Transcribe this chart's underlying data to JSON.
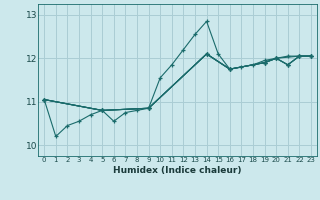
{
  "xlabel": "Humidex (Indice chaleur)",
  "bg_color": "#cce8ec",
  "grid_color": "#aacdd4",
  "line_color": "#1a6b6b",
  "xlim": [
    -0.5,
    23.5
  ],
  "ylim": [
    9.75,
    13.25
  ],
  "xticks": [
    0,
    1,
    2,
    3,
    4,
    5,
    6,
    7,
    8,
    9,
    10,
    11,
    12,
    13,
    14,
    15,
    16,
    17,
    18,
    19,
    20,
    21,
    22,
    23
  ],
  "yticks": [
    10,
    11,
    12,
    13
  ],
  "lines": [
    {
      "x": [
        0,
        1,
        2,
        3,
        4,
        5,
        6,
        7,
        8,
        9,
        10,
        11,
        12,
        13,
        14,
        15,
        16,
        17,
        18,
        19,
        20,
        21,
        22,
        23
      ],
      "y": [
        11.05,
        10.2,
        10.45,
        10.55,
        10.7,
        10.8,
        10.55,
        10.75,
        10.8,
        10.85,
        11.55,
        11.85,
        12.2,
        12.55,
        12.85,
        12.1,
        11.75,
        11.8,
        11.85,
        11.95,
        12.0,
        12.05,
        12.05,
        12.05
      ]
    },
    {
      "x": [
        0,
        5,
        9,
        14,
        16,
        19,
        20,
        21,
        22,
        23
      ],
      "y": [
        11.05,
        10.8,
        10.85,
        12.1,
        11.75,
        11.9,
        12.0,
        11.85,
        12.05,
        12.05
      ]
    },
    {
      "x": [
        0,
        5,
        9,
        14,
        16,
        19,
        20,
        22,
        23
      ],
      "y": [
        11.05,
        10.8,
        10.85,
        12.1,
        11.75,
        11.9,
        12.0,
        12.05,
        12.05
      ]
    },
    {
      "x": [
        0,
        5,
        9,
        14,
        16,
        19,
        20,
        21,
        22,
        23
      ],
      "y": [
        11.05,
        10.8,
        10.85,
        12.1,
        11.75,
        11.9,
        12.0,
        11.85,
        12.05,
        12.05
      ]
    },
    {
      "x": [
        0,
        5,
        9,
        14,
        16,
        19,
        20,
        21,
        22,
        23
      ],
      "y": [
        11.05,
        10.8,
        10.85,
        12.1,
        11.75,
        11.9,
        12.0,
        11.85,
        12.05,
        12.05
      ]
    }
  ]
}
